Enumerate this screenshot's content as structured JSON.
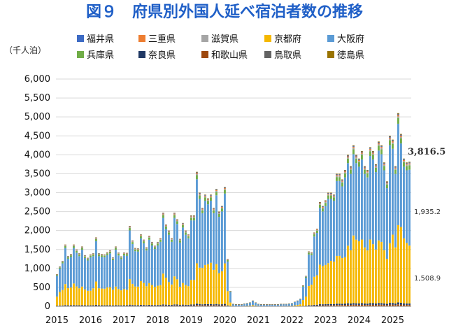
{
  "chart_data": {
    "type": "bar",
    "stacked": true,
    "title": "図９　府県別外国人延べ宿泊者数の推移",
    "unit_label": "（千人泊）",
    "ylim": [
      0,
      6000
    ],
    "y_ticks": [
      "0",
      "500",
      "1,000",
      "1,500",
      "2,000",
      "2,500",
      "3,000",
      "3,500",
      "4,000",
      "4,500",
      "5,000",
      "5,500",
      "6,000"
    ],
    "x_ticks": [
      "2015",
      "2016",
      "2017",
      "2018",
      "2019",
      "2020",
      "2021",
      "2022",
      "2023",
      "2024",
      "2025"
    ],
    "x_start_year": 2015,
    "months_count": 127,
    "legend_position": "top",
    "series": [
      {
        "name": "福井県",
        "color": "#3d6bc4"
      },
      {
        "name": "三重県",
        "color": "#ed7d31"
      },
      {
        "name": "滋賀県",
        "color": "#a5a5a5"
      },
      {
        "name": "京都府",
        "color": "#f5b800"
      },
      {
        "name": "大阪府",
        "color": "#5b9bd5"
      },
      {
        "name": "兵庫県",
        "color": "#70ad47"
      },
      {
        "name": "奈良県",
        "color": "#1f3864"
      },
      {
        "name": "和歌山県",
        "color": "#9e480e"
      },
      {
        "name": "鳥取県",
        "color": "#636363"
      },
      {
        "name": "徳島県",
        "color": "#997300"
      }
    ],
    "monthly_totals": [
      850,
      1050,
      1200,
      1630,
      1330,
      1380,
      1630,
      1500,
      1400,
      1580,
      1350,
      1280,
      1370,
      1400,
      1820,
      1400,
      1380,
      1370,
      1430,
      1480,
      1290,
      1580,
      1420,
      1320,
      1420,
      1410,
      2120,
      1740,
      1540,
      1530,
      1900,
      1760,
      1560,
      1860,
      1700,
      1600,
      1700,
      1800,
      2470,
      2160,
      2000,
      1800,
      2470,
      2300,
      1780,
      2200,
      2000,
      1900,
      2400,
      2400,
      3550,
      3000,
      2600,
      2950,
      2850,
      2950,
      2600,
      3100,
      2500,
      2650,
      3150,
      1250,
      400,
      60,
      50,
      50,
      50,
      70,
      80,
      100,
      150,
      100,
      60,
      50,
      50,
      50,
      50,
      50,
      50,
      50,
      60,
      60,
      60,
      70,
      80,
      120,
      150,
      200,
      550,
      800,
      1450,
      1430,
      1950,
      2050,
      2750,
      2650,
      2800,
      3000,
      3000,
      2950,
      3500,
      3500,
      3350,
      3600,
      4000,
      3700,
      4250,
      4000,
      3900,
      4100,
      3700,
      3600,
      4200,
      4100,
      3750,
      4350,
      4250,
      3800,
      3300,
      4500,
      4400,
      3700,
      5100,
      4550,
      3900,
      3800,
      3816.5
    ],
    "kyoto_share": [
      0.28,
      0.34,
      0.34,
      0.34,
      0.34,
      0.34,
      0.35,
      0.33,
      0.32,
      0.31,
      0.31,
      0.3,
      0.28,
      0.32,
      0.34,
      0.32,
      0.32,
      0.32,
      0.33,
      0.32,
      0.32,
      0.31,
      0.3,
      0.3,
      0.3,
      0.29,
      0.32,
      0.32,
      0.32,
      0.32,
      0.33,
      0.33,
      0.32,
      0.31,
      0.31,
      0.3,
      0.3,
      0.29,
      0.33,
      0.33,
      0.3,
      0.3,
      0.3,
      0.29,
      0.27,
      0.26,
      0.26,
      0.26,
      0.27,
      0.27,
      0.3,
      0.32,
      0.37,
      0.35,
      0.37,
      0.37,
      0.35,
      0.34,
      0.33,
      0.33,
      0.34,
      0.3,
      0.23,
      0.2,
      0.2,
      0.2,
      0.2,
      0.2,
      0.2,
      0.2,
      0.2,
      0.2,
      0.2,
      0.2,
      0.2,
      0.2,
      0.2,
      0.2,
      0.2,
      0.2,
      0.2,
      0.2,
      0.2,
      0.2,
      0.2,
      0.2,
      0.22,
      0.25,
      0.28,
      0.3,
      0.35,
      0.38,
      0.38,
      0.38,
      0.38,
      0.38,
      0.37,
      0.36,
      0.38,
      0.38,
      0.36,
      0.36,
      0.36,
      0.34,
      0.38,
      0.38,
      0.42,
      0.42,
      0.42,
      0.41,
      0.4,
      0.39,
      0.4,
      0.38,
      0.38,
      0.38,
      0.38,
      0.37,
      0.36,
      0.35,
      0.41,
      0.4,
      0.4,
      0.44,
      0.44,
      0.42,
      0.4
    ],
    "latest_annotations": {
      "total": "3,816.5",
      "osaka": "1,935.2",
      "kyoto": "1,508.9"
    }
  }
}
